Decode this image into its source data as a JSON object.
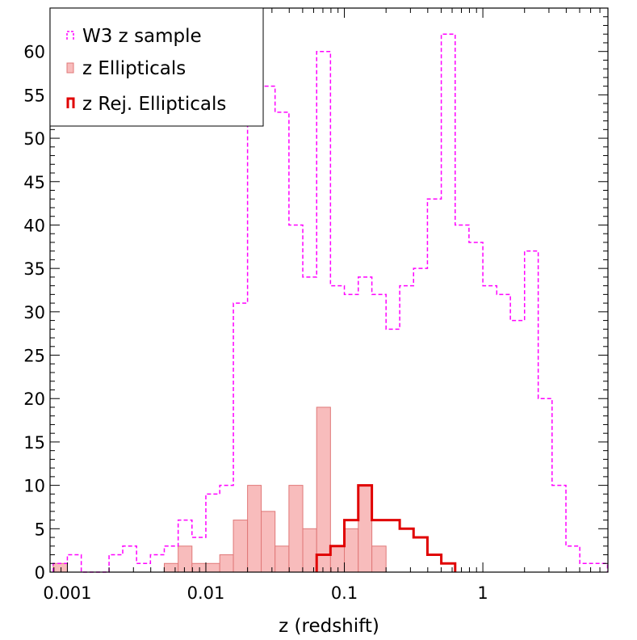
{
  "chart_data": {
    "type": "histogram",
    "xscale": "log",
    "xlim": [
      0.00075,
      8.0
    ],
    "ylim": [
      0,
      65
    ],
    "xlabel": "z (redshift)",
    "ylabel": "",
    "grid": false,
    "legend_position": "top-left",
    "x_tick_labels": [
      {
        "value": 0.001,
        "label": "0.001"
      },
      {
        "value": 0.01,
        "label": "0.01"
      },
      {
        "value": 0.1,
        "label": "0.1"
      },
      {
        "value": 1,
        "label": "1"
      }
    ],
    "y_tick_labels": [
      "0",
      "5",
      "10",
      "15",
      "20",
      "25",
      "30",
      "35",
      "40",
      "45",
      "50",
      "55",
      "60"
    ],
    "series": [
      {
        "name": "W3 z sample",
        "style": "step-dashed",
        "color": "#ff00ff",
        "bin_edges": [
          0.00079,
          0.001,
          0.00126,
          0.00158,
          0.002,
          0.00251,
          0.00316,
          0.00398,
          0.00501,
          0.00631,
          0.00794,
          0.01,
          0.0126,
          0.0158,
          0.02,
          0.0251,
          0.0316,
          0.0398,
          0.0501,
          0.0631,
          0.0794,
          0.1,
          0.126,
          0.158,
          0.2,
          0.251,
          0.316,
          0.398,
          0.501,
          0.631,
          0.794,
          1.0,
          1.26,
          1.58,
          2.0,
          2.51,
          3.16,
          3.98,
          5.01,
          6.31,
          7.94
        ],
        "counts": [
          1,
          2,
          0,
          0,
          2,
          3,
          1,
          2,
          3,
          6,
          4,
          9,
          10,
          31,
          56,
          56,
          53,
          40,
          34,
          60,
          33,
          32,
          34,
          32,
          28,
          33,
          35,
          43,
          62,
          40,
          38,
          33,
          32,
          29,
          37,
          20,
          10,
          3,
          1,
          1
        ]
      },
      {
        "name": "z Ellipticals",
        "style": "bar-filled",
        "color": "#f8bcbc",
        "edge_color": "#e07878",
        "bin_edges": [
          0.00079,
          0.001,
          0.00126,
          0.00158,
          0.002,
          0.00251,
          0.00316,
          0.00398,
          0.00501,
          0.00631,
          0.00794,
          0.01,
          0.0126,
          0.0158,
          0.02,
          0.0251,
          0.0316,
          0.0398,
          0.0501,
          0.0631,
          0.0794,
          0.1,
          0.126,
          0.158,
          0.2,
          0.251,
          0.316,
          0.398,
          0.501,
          0.631,
          0.794
        ],
        "counts": [
          1,
          0,
          0,
          0,
          0,
          0,
          0,
          0,
          1,
          3,
          1,
          1,
          2,
          6,
          10,
          7,
          3,
          10,
          5,
          19,
          3,
          5,
          10,
          3,
          0,
          0,
          0,
          0,
          0,
          0
        ]
      },
      {
        "name": "z Rej. Ellipticals",
        "style": "step-solid",
        "color": "#e00000",
        "bin_edges": [
          0.0631,
          0.0794,
          0.1,
          0.126,
          0.158,
          0.2,
          0.251,
          0.316,
          0.398,
          0.501,
          0.631
        ],
        "counts": [
          2,
          3,
          6,
          10,
          6,
          6,
          5,
          4,
          2,
          1
        ]
      }
    ]
  }
}
